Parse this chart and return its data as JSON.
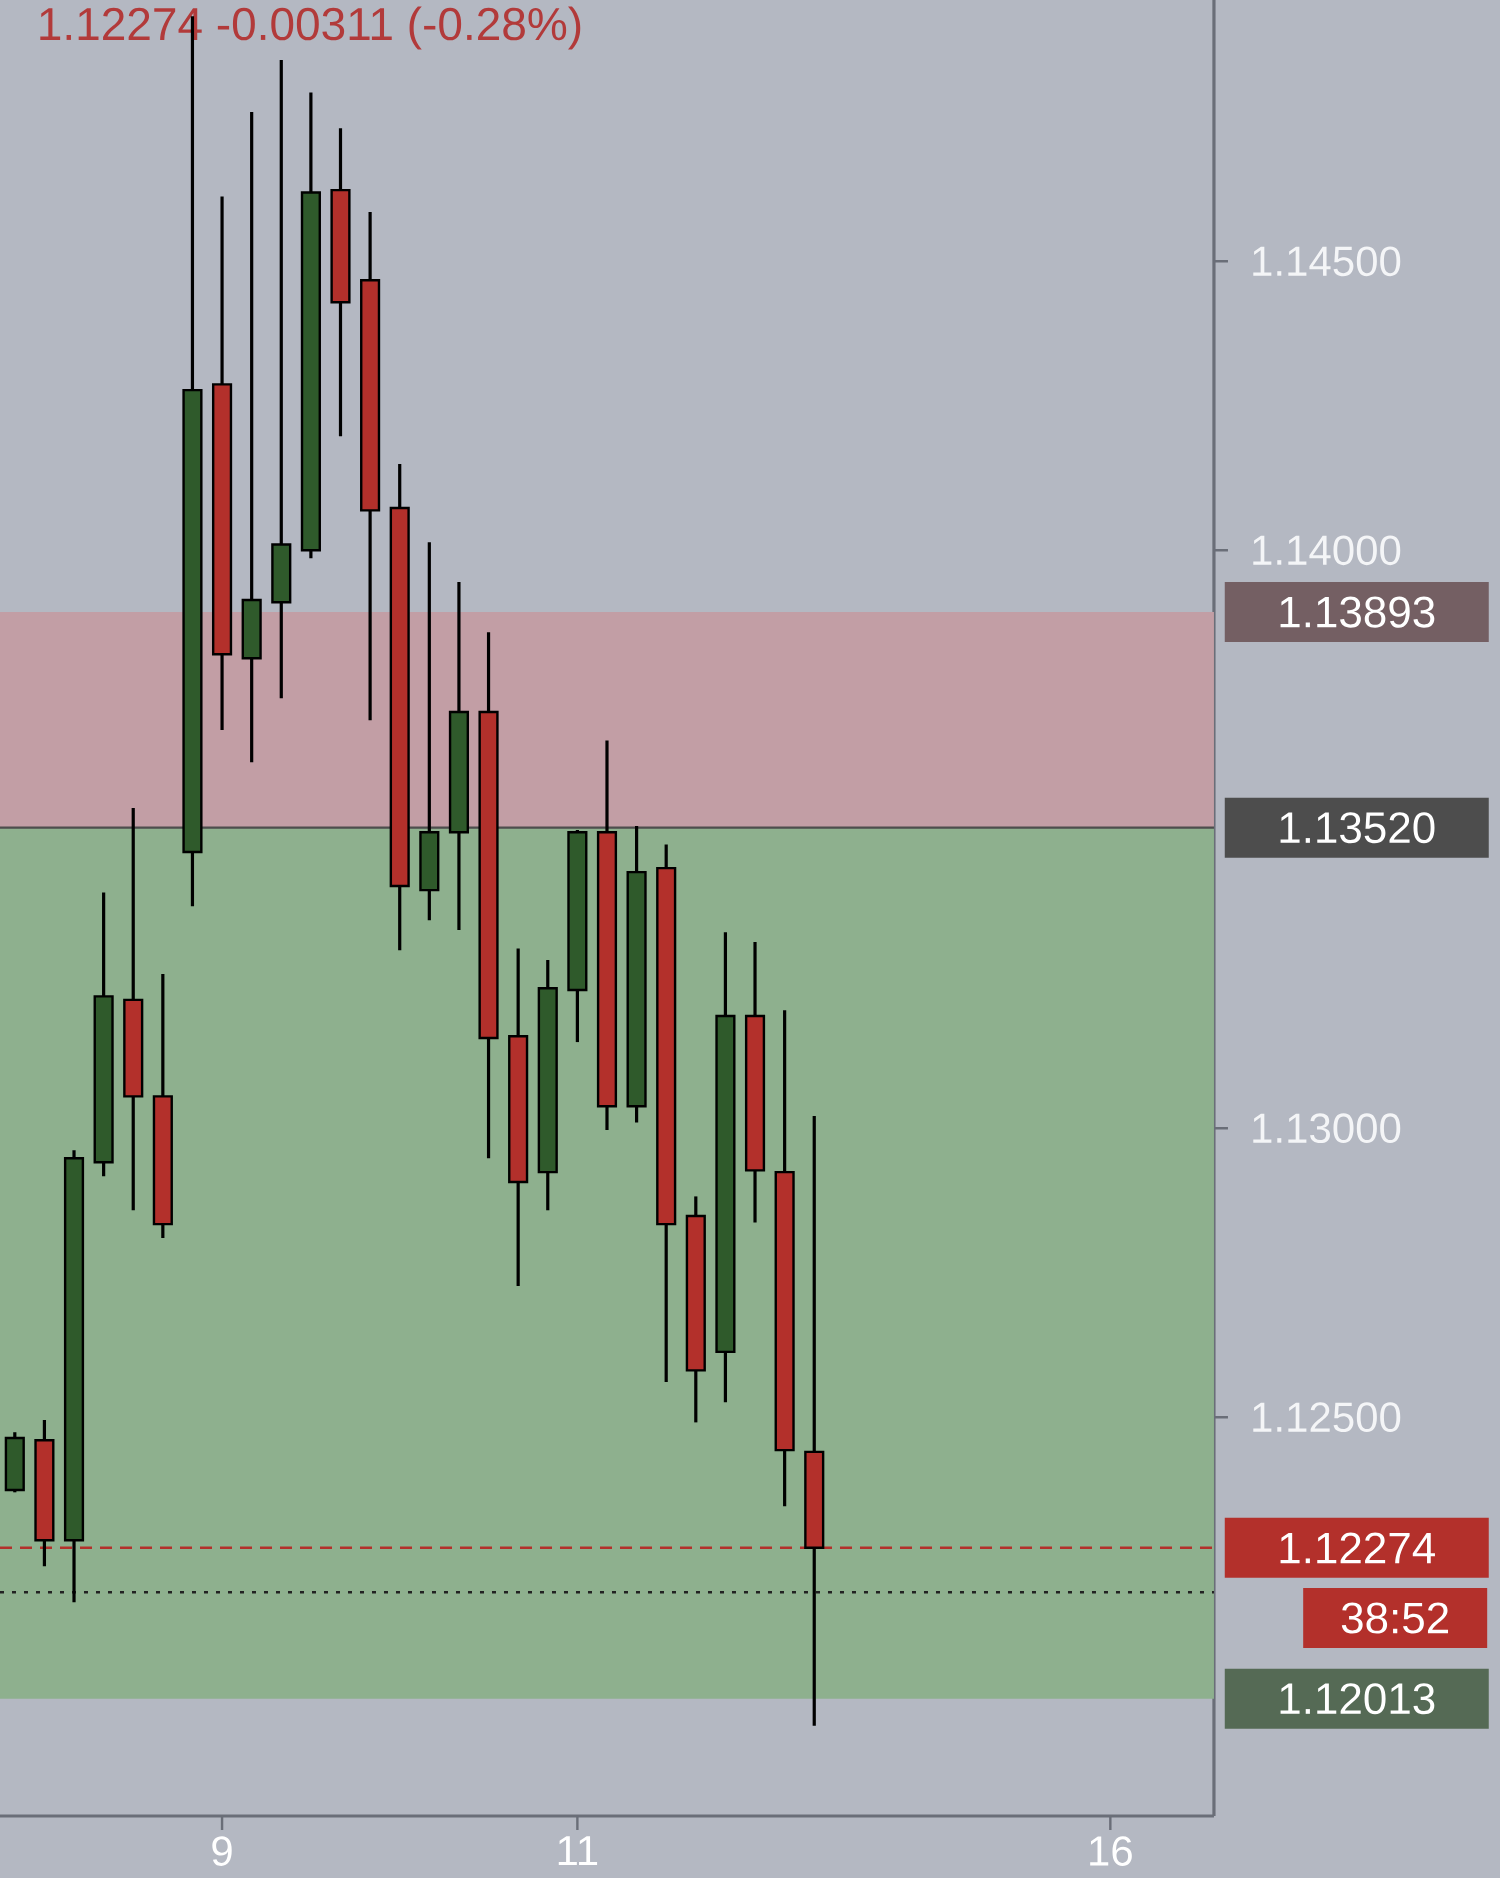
{
  "chart_data": {
    "type": "candlestick",
    "title": "1.12274  -0.00311 (-0.28%)",
    "categories": [
      null,
      null,
      null,
      null,
      null,
      null,
      null,
      "9",
      null,
      null,
      null,
      null,
      null,
      null,
      null,
      null,
      null,
      null,
      null,
      "11",
      null,
      null,
      null,
      null,
      null,
      null,
      null,
      null,
      null,
      null,
      null,
      null,
      null,
      null,
      null,
      null,
      null,
      "16",
      null,
      null,
      null
    ],
    "ohlc": [
      [
        1.12374,
        1.12474,
        1.1237,
        1.12464
      ],
      [
        1.1246,
        1.12495,
        1.12242,
        1.12287
      ],
      [
        1.12287,
        1.12962,
        1.1218,
        1.12948
      ],
      [
        1.12941,
        1.13408,
        1.12917,
        1.13228
      ],
      [
        1.13222,
        1.13554,
        1.12858,
        1.13055
      ],
      [
        1.13055,
        1.13267,
        1.1281,
        1.12834
      ],
      [
        1.13478,
        1.14924,
        1.13384,
        1.14277
      ],
      [
        1.14287,
        1.14612,
        1.13689,
        1.1382
      ],
      [
        1.13813,
        1.14758,
        1.13633,
        1.13914
      ],
      [
        1.1391,
        1.14848,
        1.13744,
        1.1401
      ],
      [
        1.14,
        1.14792,
        1.13986,
        1.14619
      ],
      [
        1.14623,
        1.1473,
        1.14197,
        1.14429
      ],
      [
        1.14467,
        1.14585,
        1.13706,
        1.14069
      ],
      [
        1.14073,
        1.14149,
        1.13308,
        1.13419
      ],
      [
        1.13412,
        1.14014,
        1.1336,
        1.13512
      ],
      [
        1.13512,
        1.13945,
        1.13343,
        1.1372
      ],
      [
        1.1372,
        1.13858,
        1.12948,
        1.13156
      ],
      [
        1.13159,
        1.13311,
        1.12727,
        1.12907
      ],
      [
        1.12924,
        1.13291,
        1.12858,
        1.13242
      ],
      [
        1.13239,
        1.13516,
        1.13149,
        1.13512
      ],
      [
        1.13512,
        1.13671,
        1.12997,
        1.13038
      ],
      [
        1.13038,
        1.13523,
        1.1301,
        1.13443
      ],
      [
        1.1345,
        1.13491,
        1.12561,
        1.12834
      ],
      [
        1.12848,
        1.12882,
        1.12491,
        1.12581
      ],
      [
        1.12613,
        1.13339,
        1.12526,
        1.13194
      ],
      [
        1.13194,
        1.13322,
        1.12837,
        1.12927
      ],
      [
        1.12924,
        1.13204,
        1.12346,
        1.12443
      ],
      [
        1.1244,
        1.13021,
        1.11966,
        1.12274
      ],
      null,
      null,
      null,
      null,
      null,
      null,
      null,
      null,
      null,
      null,
      null,
      null,
      null
    ],
    "colors": [
      "#2f5a2b",
      "#b3302b",
      "#2f5a2b",
      "#2f5a2b",
      "#b3302b",
      "#b3302b",
      "#2f5a2b",
      "#b3302b",
      "#2f5a2b",
      "#2f5a2b",
      "#2f5a2b",
      "#b3302b",
      "#b3302b",
      "#b3302b",
      "#2f5a2b",
      "#2f5a2b",
      "#b3302b",
      "#b3302b",
      "#2f5a2b",
      "#2f5a2b",
      "#b3302b",
      "#2f5a2b",
      "#b3302b",
      "#b3302b",
      "#2f5a2b",
      "#b3302b",
      "#b3302b",
      "#b3302b",
      null,
      null,
      null,
      null,
      null,
      null,
      null,
      null,
      null,
      null,
      null,
      null,
      null
    ],
    "ylim": [
      1.1181,
      1.14952
    ],
    "yticks": [
      {
        "value": 1.125,
        "label": "1.12500"
      },
      {
        "value": 1.13,
        "label": "1.13000"
      },
      {
        "value": 1.14,
        "label": "1.14000"
      },
      {
        "value": 1.145,
        "label": "1.14500"
      }
    ],
    "bands": [
      {
        "axis": "y",
        "from": 1.1352,
        "to": 1.13893,
        "label": "1.13893",
        "color": "#c29ea5"
      },
      {
        "axis": "y",
        "from": 1.12013,
        "to": 1.1352,
        "label": "1.12013",
        "color": "#8eb08e"
      }
    ],
    "ref_lines": [
      {
        "axis": "y",
        "value": 1.1352,
        "label": "1.13520",
        "color": "#4d4d4d",
        "line_style": "solid"
      },
      {
        "axis": "y",
        "value": 1.12274,
        "label": "1.12274",
        "color": "#b3302b",
        "line_style": "dashed"
      },
      {
        "axis": "y",
        "value": 1.12197,
        "label": null,
        "color": "#222222",
        "line_style": "dotted"
      }
    ],
    "annotations": [
      "38:52"
    ]
  }
}
